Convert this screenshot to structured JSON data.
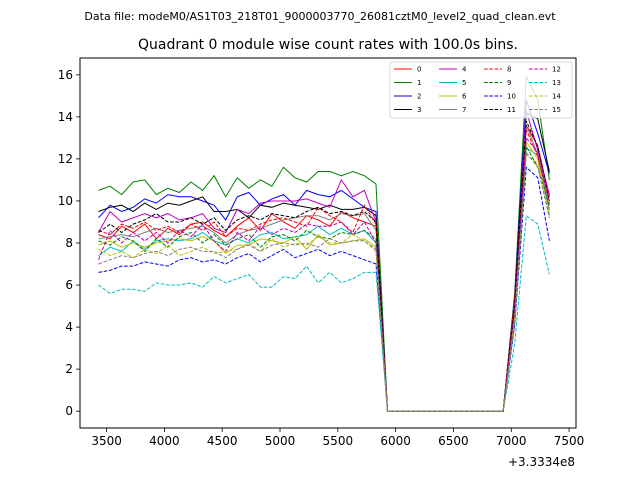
{
  "chart_data": {
    "type": "line",
    "suptitle": "Data file: modeM0/AS1T03_218T01_9000003770_26081cztM0_level2_quad_clean.evt",
    "title": "Quadrant 0 module wise count rates with 100.0s bins.",
    "xlabel": "",
    "ylabel": "",
    "x_offset_label": "+3.3334e8",
    "xlim": [
      3270,
      7560
    ],
    "ylim": [
      -0.8,
      16.8
    ],
    "xticks": [
      3500,
      4000,
      4500,
      5000,
      5500,
      6000,
      6500,
      7000,
      7500
    ],
    "yticks": [
      0,
      2,
      4,
      6,
      8,
      10,
      12,
      14,
      16
    ],
    "grid": false,
    "legend_position": "top-right",
    "x": [
      3430,
      3530,
      3630,
      3730,
      3830,
      3930,
      4030,
      4130,
      4230,
      4330,
      4430,
      4530,
      4630,
      4730,
      4830,
      4930,
      5030,
      5130,
      5230,
      5330,
      5430,
      5530,
      5630,
      5730,
      5830,
      5930,
      6030,
      6130,
      6230,
      6330,
      6430,
      6530,
      6630,
      6730,
      6830,
      6930,
      7030,
      7130,
      7230,
      7330
    ],
    "series": [
      {
        "name": "0",
        "color": "#ff0000",
        "dash": false,
        "values": [
          8.4,
          8.2,
          8.8,
          8.5,
          8.9,
          8.2,
          8.7,
          8.4,
          8.9,
          9.0,
          8.6,
          8.3,
          8.8,
          9.2,
          8.6,
          9.4,
          9.0,
          8.7,
          9.3,
          9.1,
          8.8,
          9.5,
          9.2,
          9.0,
          8.8,
          0,
          0,
          0,
          0,
          0,
          0,
          0,
          0,
          0,
          0,
          0,
          5.0,
          13.6,
          12.6,
          10.2
        ]
      },
      {
        "name": "1",
        "color": "#008000",
        "dash": false,
        "values": [
          10.5,
          10.7,
          10.3,
          10.9,
          11.0,
          10.3,
          10.6,
          10.4,
          10.9,
          10.5,
          11.2,
          10.2,
          11.1,
          10.6,
          11.0,
          10.7,
          11.6,
          11.1,
          10.9,
          11.4,
          11.4,
          11.2,
          11.4,
          11.2,
          10.8,
          0,
          0,
          0,
          0,
          0,
          0,
          0,
          0,
          0,
          0,
          0,
          5.6,
          15.9,
          14.8,
          11.0
        ]
      },
      {
        "name": "2",
        "color": "#0000ff",
        "dash": false,
        "values": [
          9.2,
          9.8,
          9.5,
          9.7,
          10.1,
          9.9,
          10.3,
          10.2,
          10.2,
          10.0,
          9.8,
          9.1,
          10.2,
          10.4,
          9.8,
          10.1,
          10.3,
          9.8,
          10.5,
          10.3,
          10.2,
          10.5,
          10.1,
          9.7,
          9.5,
          0,
          0,
          0,
          0,
          0,
          0,
          0,
          0,
          0,
          0,
          0,
          5.5,
          14.8,
          13.2,
          11.3
        ]
      },
      {
        "name": "3",
        "color": "#000000",
        "dash": false,
        "values": [
          9.5,
          9.7,
          9.8,
          9.5,
          9.9,
          9.6,
          9.9,
          9.8,
          10.0,
          10.2,
          9.5,
          9.5,
          9.6,
          9.2,
          9.8,
          9.7,
          9.9,
          9.8,
          9.7,
          9.6,
          9.8,
          9.6,
          9.6,
          9.7,
          9.3,
          0,
          0,
          0,
          0,
          0,
          0,
          0,
          0,
          0,
          0,
          0,
          5.4,
          14.2,
          13.9,
          11.4
        ]
      },
      {
        "name": "4",
        "color": "#bf00bf",
        "dash": false,
        "values": [
          8.5,
          9.5,
          9.0,
          9.2,
          9.4,
          9.2,
          9.4,
          9.1,
          9.2,
          9.4,
          8.7,
          8.5,
          9.6,
          9.4,
          9.9,
          10.0,
          10.0,
          10.0,
          10.1,
          9.9,
          9.7,
          11.0,
          10.2,
          10.5,
          9.0,
          0,
          0,
          0,
          0,
          0,
          0,
          0,
          0,
          0,
          0,
          0,
          4.7,
          14.3,
          12.4,
          10.3
        ]
      },
      {
        "name": "5",
        "color": "#00bfbf",
        "dash": false,
        "values": [
          7.4,
          7.8,
          7.6,
          8.1,
          7.7,
          8.1,
          8.2,
          8.1,
          8.2,
          8.5,
          8.1,
          7.9,
          8.2,
          8.0,
          8.4,
          8.5,
          8.2,
          8.3,
          8.4,
          8.8,
          8.4,
          8.7,
          8.4,
          8.6,
          8.0,
          0,
          0,
          0,
          0,
          0,
          0,
          0,
          0,
          0,
          0,
          0,
          4.5,
          12.5,
          12.2,
          9.3
        ]
      },
      {
        "name": "6",
        "color": "#bfbf00",
        "dash": false,
        "values": [
          7.9,
          8.1,
          7.8,
          8.0,
          7.8,
          8.0,
          8.1,
          8.2,
          8.1,
          8.3,
          8.1,
          7.5,
          7.9,
          7.9,
          8.2,
          8.1,
          8.0,
          8.3,
          7.7,
          8.4,
          7.9,
          8.0,
          8.1,
          8.2,
          7.8,
          0,
          0,
          0,
          0,
          0,
          0,
          0,
          0,
          0,
          0,
          0,
          4.6,
          12.8,
          12.0,
          9.6
        ]
      },
      {
        "name": "7",
        "color": "#808080",
        "dash": false,
        "values": [
          8.2,
          8.3,
          8.4,
          8.3,
          8.5,
          8.7,
          8.5,
          8.6,
          8.7,
          8.8,
          8.5,
          8.0,
          8.4,
          8.6,
          8.7,
          8.9,
          9.1,
          9.2,
          9.3,
          9.3,
          9.1,
          9.4,
          9.3,
          9.4,
          8.6,
          0,
          0,
          0,
          0,
          0,
          0,
          0,
          0,
          0,
          0,
          0,
          5.2,
          13.6,
          12.2,
          9.6
        ]
      },
      {
        "name": "8",
        "color": "#ff0000",
        "dash": true,
        "values": [
          8.6,
          8.4,
          8.9,
          8.7,
          9.0,
          8.6,
          8.8,
          8.5,
          8.9,
          8.6,
          9.0,
          8.3,
          8.7,
          8.6,
          8.9,
          9.1,
          9.2,
          9.0,
          8.8,
          9.7,
          9.3,
          9.0,
          8.5,
          9.8,
          8.9,
          0,
          0,
          0,
          0,
          0,
          0,
          0,
          0,
          0,
          0,
          0,
          5.4,
          13.4,
          12.1,
          10.0
        ]
      },
      {
        "name": "9",
        "color": "#008000",
        "dash": true,
        "values": [
          8.1,
          7.9,
          8.3,
          8.1,
          7.6,
          8.2,
          7.8,
          8.3,
          8.5,
          8.0,
          8.4,
          7.9,
          8.2,
          8.4,
          7.8,
          8.3,
          8.4,
          8.1,
          8.6,
          8.3,
          8.2,
          8.5,
          8.4,
          8.6,
          8.2,
          0,
          0,
          0,
          0,
          0,
          0,
          0,
          0,
          0,
          0,
          0,
          4.9,
          12.6,
          11.6,
          9.8
        ]
      },
      {
        "name": "10",
        "color": "#0000ff",
        "dash": true,
        "values": [
          6.6,
          6.7,
          6.9,
          6.9,
          7.1,
          7.0,
          6.9,
          7.2,
          7.3,
          7.1,
          7.2,
          7.0,
          7.3,
          7.5,
          7.1,
          7.4,
          7.7,
          7.3,
          7.5,
          7.7,
          7.4,
          7.6,
          7.4,
          7.2,
          7.0,
          0,
          0,
          0,
          0,
          0,
          0,
          0,
          0,
          0,
          0,
          0,
          4.1,
          11.6,
          11.1,
          8.1
        ]
      },
      {
        "name": "11",
        "color": "#000000",
        "dash": true,
        "values": [
          8.5,
          8.9,
          8.5,
          8.9,
          9.1,
          9.4,
          9.0,
          9.0,
          9.2,
          8.9,
          9.2,
          8.6,
          9.1,
          9.3,
          9.1,
          9.4,
          9.3,
          9.2,
          9.5,
          9.7,
          9.4,
          9.5,
          9.3,
          9.5,
          9.0,
          0,
          0,
          0,
          0,
          0,
          0,
          0,
          0,
          0,
          0,
          0,
          5.1,
          13.8,
          12.6,
          10.0
        ]
      },
      {
        "name": "12",
        "color": "#bf00bf",
        "dash": true,
        "values": [
          7.2,
          8.6,
          8.0,
          8.5,
          8.1,
          8.5,
          8.0,
          8.6,
          8.3,
          8.9,
          8.1,
          7.6,
          8.5,
          8.1,
          8.8,
          8.4,
          8.7,
          8.5,
          8.9,
          8.8,
          8.8,
          9.0,
          8.4,
          9.0,
          8.0,
          0,
          0,
          0,
          0,
          0,
          0,
          0,
          0,
          0,
          0,
          0,
          4.8,
          13.0,
          12.3,
          9.9
        ]
      },
      {
        "name": "13",
        "color": "#00bfbf",
        "dash": true,
        "values": [
          6.0,
          5.6,
          5.8,
          5.8,
          5.7,
          6.1,
          6.0,
          6.0,
          6.1,
          5.9,
          6.4,
          6.1,
          6.3,
          6.5,
          5.9,
          5.9,
          6.4,
          6.3,
          6.9,
          6.1,
          6.6,
          6.1,
          6.3,
          6.6,
          6.6,
          0,
          0,
          0,
          0,
          0,
          0,
          0,
          0,
          0,
          0,
          0,
          3.2,
          9.3,
          8.9,
          6.5
        ]
      },
      {
        "name": "14",
        "color": "#bfbf00",
        "dash": true,
        "values": [
          7.7,
          7.4,
          7.6,
          7.3,
          7.7,
          7.5,
          7.9,
          7.4,
          7.6,
          7.8,
          7.5,
          7.6,
          7.7,
          8.0,
          7.6,
          8.2,
          7.8,
          8.0,
          7.9,
          8.3,
          8.0,
          8.0,
          8.4,
          8.1,
          7.6,
          0,
          0,
          0,
          0,
          0,
          0,
          0,
          0,
          0,
          0,
          0,
          4.4,
          12.2,
          11.8,
          9.4
        ]
      },
      {
        "name": "15",
        "color": "#808080",
        "dash": true,
        "values": [
          7.0,
          7.2,
          7.4,
          7.3,
          7.5,
          7.6,
          7.4,
          7.7,
          7.8,
          7.6,
          7.6,
          7.3,
          7.7,
          7.9,
          7.6,
          7.9,
          8.0,
          7.9,
          8.0,
          7.8,
          8.2,
          8.0,
          8.1,
          8.1,
          7.7,
          0,
          0,
          0,
          0,
          0,
          0,
          0,
          0,
          0,
          0,
          0,
          4.2,
          12.3,
          11.6,
          9.2
        ]
      }
    ]
  }
}
